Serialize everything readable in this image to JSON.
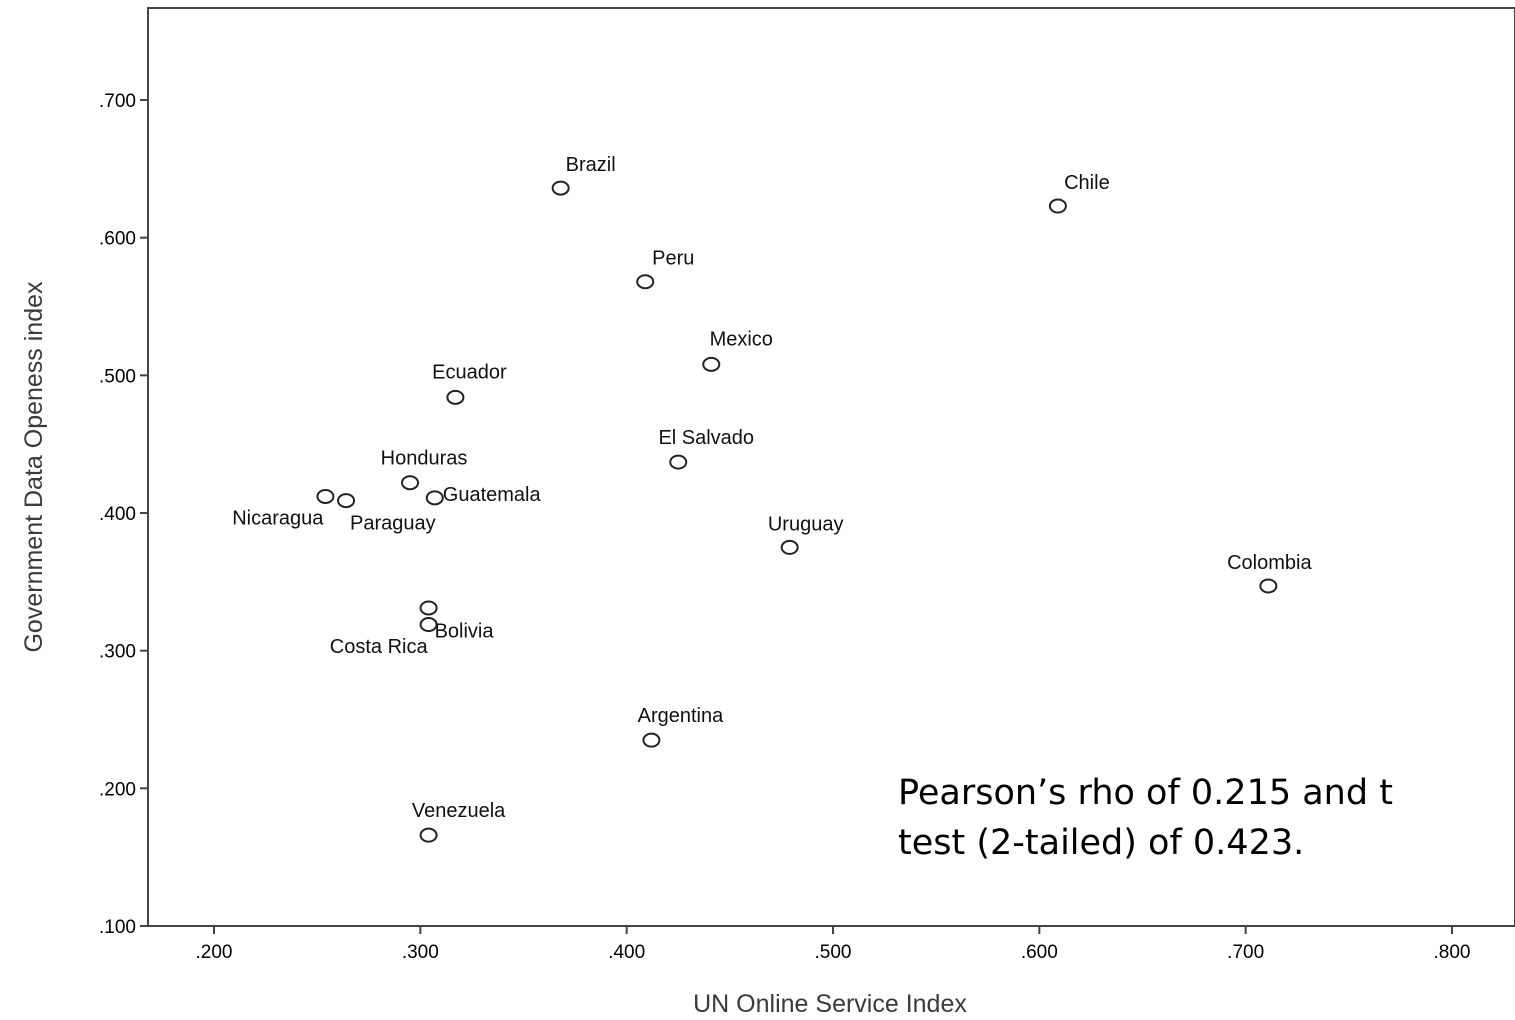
{
  "chart_data": {
    "type": "scatter",
    "xlabel": "UN Online Service Index",
    "ylabel": "Government Data Openess index",
    "xlim": [
      0.17,
      0.83
    ],
    "ylim": [
      0.1,
      0.77
    ],
    "x_ticks": [
      ".200",
      ".300",
      ".400",
      ".500",
      ".600",
      ".700",
      ".800"
    ],
    "y_ticks": [
      ".100",
      ".200",
      ".300",
      ".400",
      ".500",
      ".600",
      ".700"
    ],
    "grid": false,
    "marker": "hollow-circle",
    "points": [
      {
        "label": "Brazil",
        "x": 0.368,
        "y": 0.636
      },
      {
        "label": "Chile",
        "x": 0.609,
        "y": 0.623
      },
      {
        "label": "Peru",
        "x": 0.409,
        "y": 0.568
      },
      {
        "label": "Mexico",
        "x": 0.441,
        "y": 0.508
      },
      {
        "label": "Ecuador",
        "x": 0.317,
        "y": 0.484
      },
      {
        "label": "El Salvado",
        "x": 0.425,
        "y": 0.437
      },
      {
        "label": "Honduras",
        "x": 0.295,
        "y": 0.422
      },
      {
        "label": "Guatemala",
        "x": 0.307,
        "y": 0.411
      },
      {
        "label": "Nicaragua",
        "x": 0.254,
        "y": 0.412
      },
      {
        "label": "Paraguay",
        "x": 0.264,
        "y": 0.409
      },
      {
        "label": "Uruguay",
        "x": 0.479,
        "y": 0.375
      },
      {
        "label": "Colombia",
        "x": 0.711,
        "y": 0.347
      },
      {
        "label": "Costa Rica",
        "x": 0.304,
        "y": 0.331
      },
      {
        "label": "Bolivia",
        "x": 0.304,
        "y": 0.319
      },
      {
        "label": "Argentina",
        "x": 0.412,
        "y": 0.235
      },
      {
        "label": "Venezuela",
        "x": 0.304,
        "y": 0.166
      }
    ],
    "annotation": {
      "line1": "Pearson’s rho of 0.215 and t",
      "line2": "test (2-tailed) of 0.423."
    }
  }
}
